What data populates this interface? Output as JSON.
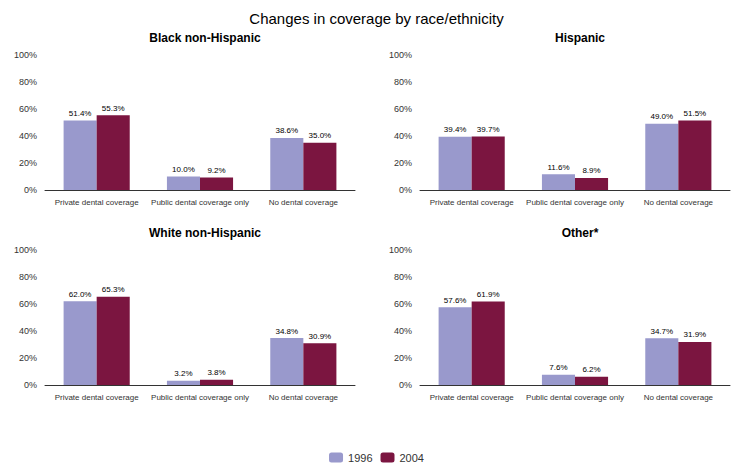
{
  "title": "Changes in coverage by race/ethnicity",
  "chart_data": [
    {
      "type": "bar",
      "title": "Black non-Hispanic",
      "categories": [
        "Private dental coverage",
        "Public dental coverage only",
        "No dental coverage"
      ],
      "series": [
        {
          "name": "1996",
          "color": "#9999cc",
          "values": [
            51.4,
            10.0,
            38.6
          ],
          "value_labels": [
            "51.4%",
            "10.0%",
            "38.6%"
          ]
        },
        {
          "name": "2004",
          "color": "#7b1540",
          "values": [
            55.3,
            9.2,
            35.0
          ],
          "value_labels": [
            "55.3%",
            "9.2%",
            "35.0%"
          ]
        }
      ],
      "ylim": [
        0,
        100
      ],
      "yticks": [
        {
          "value": 0,
          "label": "0%"
        },
        {
          "value": 20,
          "label": "20%"
        },
        {
          "value": 40,
          "label": "40%"
        },
        {
          "value": 60,
          "label": "60%"
        },
        {
          "value": 80,
          "label": "80%"
        },
        {
          "value": 100,
          "label": "100%"
        }
      ],
      "grid": false,
      "legend": "bottom",
      "data_labels": true
    },
    {
      "type": "bar",
      "title": "Hispanic",
      "categories": [
        "Private dental coverage",
        "Public dental coverage only",
        "No dental coverage"
      ],
      "series": [
        {
          "name": "1996",
          "color": "#9999cc",
          "values": [
            39.4,
            11.6,
            49.0
          ],
          "value_labels": [
            "39.4%",
            "11.6%",
            "49.0%"
          ]
        },
        {
          "name": "2004",
          "color": "#7b1540",
          "values": [
            39.7,
            8.9,
            51.5
          ],
          "value_labels": [
            "39.7%",
            "8.9%",
            "51.5%"
          ]
        }
      ],
      "ylim": [
        0,
        100
      ],
      "yticks": [
        {
          "value": 0,
          "label": "0%"
        },
        {
          "value": 20,
          "label": "20%"
        },
        {
          "value": 40,
          "label": "40%"
        },
        {
          "value": 60,
          "label": "60%"
        },
        {
          "value": 80,
          "label": "80%"
        },
        {
          "value": 100,
          "label": "100%"
        }
      ],
      "grid": false,
      "legend": "bottom",
      "data_labels": true
    },
    {
      "type": "bar",
      "title": "White non-Hispanic",
      "categories": [
        "Private dental coverage",
        "Public dental coverage only",
        "No dental coverage"
      ],
      "series": [
        {
          "name": "1996",
          "color": "#9999cc",
          "values": [
            62.0,
            3.2,
            34.8
          ],
          "value_labels": [
            "62.0%",
            "3.2%",
            "34.8%"
          ]
        },
        {
          "name": "2004",
          "color": "#7b1540",
          "values": [
            65.3,
            3.8,
            30.9
          ],
          "value_labels": [
            "65.3%",
            "3.8%",
            "30.9%"
          ]
        }
      ],
      "ylim": [
        0,
        100
      ],
      "yticks": [
        {
          "value": 0,
          "label": "0%"
        },
        {
          "value": 20,
          "label": "20%"
        },
        {
          "value": 40,
          "label": "40%"
        },
        {
          "value": 60,
          "label": "60%"
        },
        {
          "value": 80,
          "label": "80%"
        },
        {
          "value": 100,
          "label": "100%"
        }
      ],
      "grid": false,
      "legend": "bottom",
      "data_labels": true
    },
    {
      "type": "bar",
      "title": "Other*",
      "categories": [
        "Private dental coverage",
        "Public dental coverage only",
        "No dental coverage"
      ],
      "series": [
        {
          "name": "1996",
          "color": "#9999cc",
          "values": [
            57.6,
            7.6,
            34.7
          ],
          "value_labels": [
            "57.6%",
            "7.6%",
            "34.7%"
          ]
        },
        {
          "name": "2004",
          "color": "#7b1540",
          "values": [
            61.9,
            6.2,
            31.9
          ],
          "value_labels": [
            "61.9%",
            "6.2%",
            "31.9%"
          ]
        }
      ],
      "ylim": [
        0,
        100
      ],
      "yticks": [
        {
          "value": 0,
          "label": "0%"
        },
        {
          "value": 20,
          "label": "20%"
        },
        {
          "value": 40,
          "label": "40%"
        },
        {
          "value": 60,
          "label": "60%"
        },
        {
          "value": 80,
          "label": "80%"
        },
        {
          "value": 100,
          "label": "100%"
        }
      ],
      "grid": false,
      "legend": "bottom",
      "data_labels": true
    }
  ]
}
